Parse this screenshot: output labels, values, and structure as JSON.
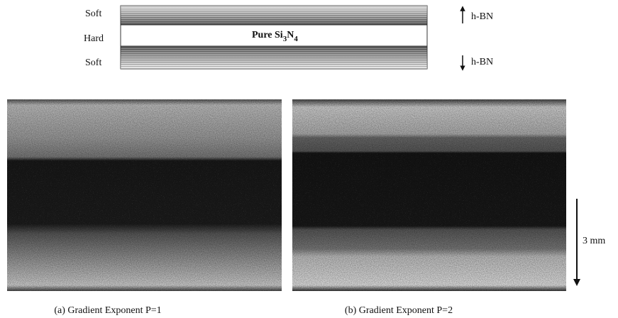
{
  "schematic": {
    "layers": [
      "Soft",
      "Hard",
      "Soft"
    ],
    "center_label": {
      "text": "Pure Si",
      "sub1": "3",
      "mid": "N",
      "sub2": "4"
    },
    "arrows": [
      "h-BN",
      "h-BN"
    ]
  },
  "scale_bar": "3 mm",
  "captions": [
    "(a) Gradient Exponent P=1",
    "(b) Gradient Exponent P=2"
  ]
}
